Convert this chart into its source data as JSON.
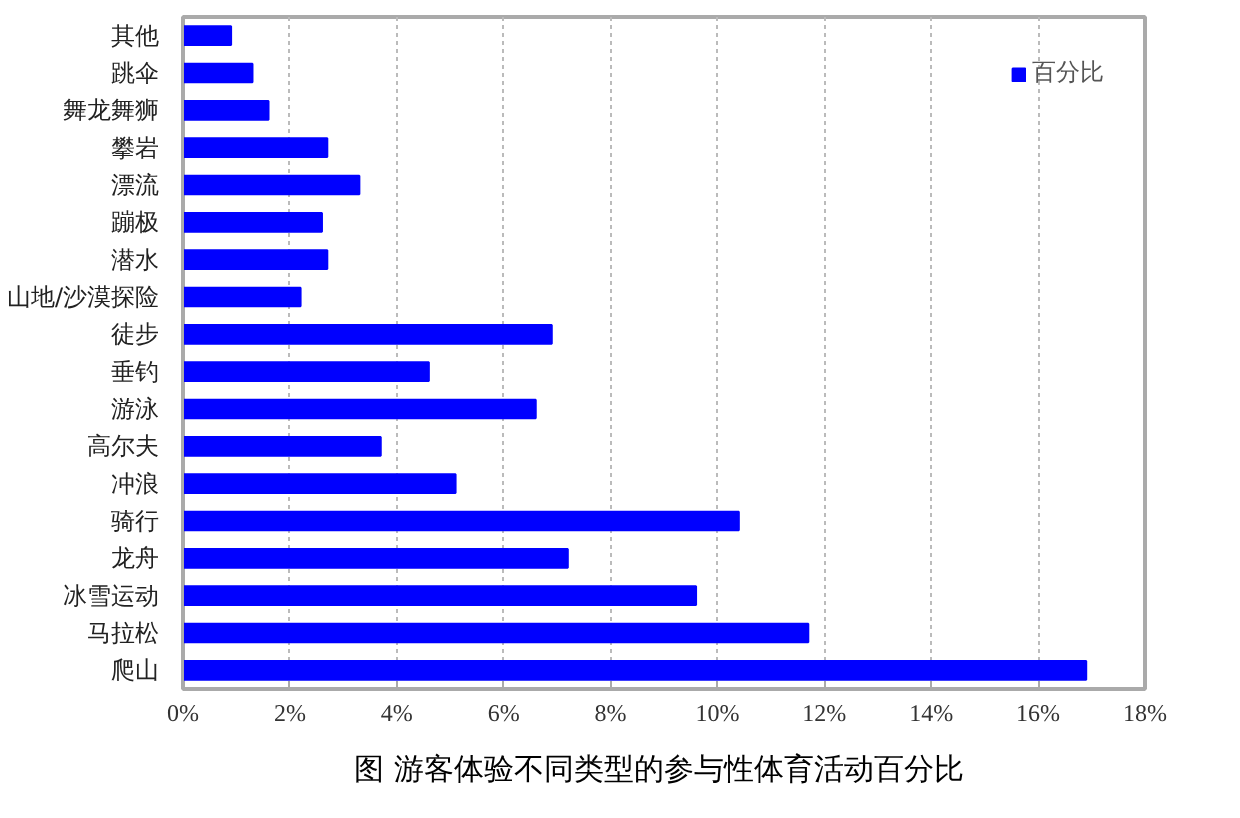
{
  "chart_data": {
    "type": "bar",
    "orientation": "horizontal",
    "title": "图  游客体验不同类型的参与性体育活动百分比",
    "categories": [
      "其他",
      "跳伞",
      "舞龙舞狮",
      "攀岩",
      "漂流",
      "蹦极",
      "潜水",
      "山地/沙漠探险",
      "徒步",
      "垂钓",
      "游泳",
      "高尔夫",
      "冲浪",
      "骑行",
      "龙舟",
      "冰雪运动",
      "马拉松",
      "爬山"
    ],
    "series": [
      {
        "name": "百分比",
        "color": "#0000ff",
        "values": [
          0.9,
          1.3,
          1.6,
          2.7,
          3.3,
          2.6,
          2.7,
          2.2,
          6.9,
          4.6,
          6.6,
          3.7,
          5.1,
          10.4,
          7.2,
          9.6,
          11.7,
          16.9
        ]
      }
    ],
    "xlim": [
      0,
      18
    ],
    "xticks": [
      {
        "value": 0,
        "label": "0%"
      },
      {
        "value": 2,
        "label": "2%"
      },
      {
        "value": 4,
        "label": "4%"
      },
      {
        "value": 6,
        "label": "6%"
      },
      {
        "value": 8,
        "label": "8%"
      },
      {
        "value": 10,
        "label": "10%"
      },
      {
        "value": 12,
        "label": "12%"
      },
      {
        "value": 14,
        "label": "14%"
      },
      {
        "value": 16,
        "label": "16%"
      },
      {
        "value": 18,
        "label": "18%"
      }
    ],
    "grid": "x",
    "legend": "top right"
  }
}
